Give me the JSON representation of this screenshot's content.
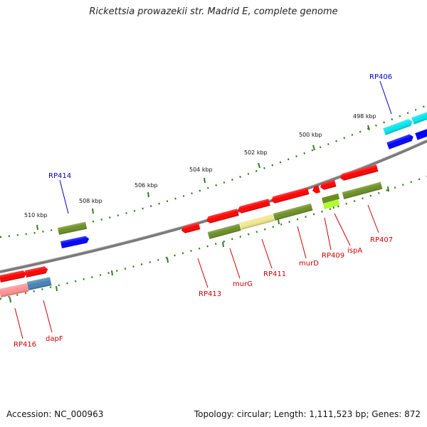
{
  "title": "Rickettsia prowazekii str. Madrid E, complete genome",
  "footer": {
    "accession": "Accession: NC_000963",
    "stats": "Topology: circular; Length: 1,111,523 bp; Genes: 872"
  },
  "colors": {
    "backbone": "#7a7a7a",
    "tick": "#2e7d1e",
    "gene_label_red": "#cc0000",
    "gene_label_blue": "#0000cc",
    "red": "#ff0000",
    "pink": "#ff9090",
    "olive": "#6b8e23",
    "khaki": "#f0e68c",
    "steelblue": "#4682b4",
    "yellowgreen": "#adff2f",
    "cyan": "#00e5ee",
    "blue": "#0000ff"
  },
  "scale_labels": [
    "498 kbp",
    "500 kbp",
    "502 kbp",
    "504 kbp",
    "506 kbp",
    "508 kbp",
    "510 kbp"
  ],
  "gene_labels": {
    "RP406": "RP406",
    "RP414": "RP414",
    "RP407": "RP407",
    "ispA": "ispA",
    "RP409": "RP409",
    "murD": "murD",
    "RP411": "RP411",
    "murG": "murG",
    "RP413": "RP413",
    "dapF": "dapF",
    "RP416": "RP416"
  }
}
